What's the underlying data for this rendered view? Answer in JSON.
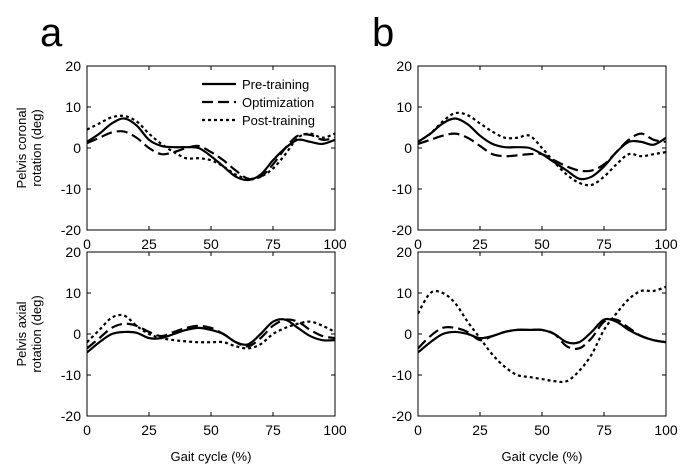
{
  "panel_labels": [
    "a",
    "b"
  ],
  "legend": {
    "pre": "Pre-training",
    "opt": "Optimization",
    "post": "Post-training"
  },
  "chart_data": [
    {
      "id": "a-top",
      "type": "line",
      "panel": "a",
      "ylabel": [
        "Pelvis coronal",
        "rotation (deg)"
      ],
      "xlabel": "",
      "xlim": [
        0,
        100
      ],
      "ylim": [
        -20,
        20
      ],
      "xticks": [
        0,
        25,
        50,
        75,
        100
      ],
      "yticks": [
        -20,
        -10,
        0,
        10,
        20
      ],
      "grid": false,
      "legend_position": "top-right",
      "series": [
        {
          "key": "pre",
          "name": "Pre-training",
          "style": "solid",
          "x": [
            0,
            5,
            10,
            15,
            20,
            25,
            30,
            35,
            40,
            45,
            50,
            55,
            60,
            65,
            70,
            75,
            80,
            85,
            90,
            95,
            100
          ],
          "y": [
            1.5,
            3.5,
            6,
            7.2,
            5.5,
            2,
            0.5,
            0.2,
            0.2,
            0,
            -2,
            -4.5,
            -7,
            -7.8,
            -6.5,
            -3,
            0,
            2,
            1.5,
            1,
            2
          ]
        },
        {
          "key": "opt",
          "name": "Optimization",
          "style": "dashed",
          "x": [
            0,
            5,
            10,
            15,
            20,
            25,
            30,
            35,
            40,
            45,
            50,
            55,
            60,
            65,
            70,
            75,
            80,
            85,
            90,
            95,
            100
          ],
          "y": [
            1.2,
            2.5,
            3.8,
            4,
            2.5,
            0,
            -1.5,
            -1,
            0,
            0.5,
            -1,
            -3,
            -5.5,
            -7.5,
            -7,
            -4,
            0,
            3,
            3.2,
            2,
            2.5
          ]
        },
        {
          "key": "post",
          "name": "Post-training",
          "style": "dotted",
          "x": [
            0,
            5,
            10,
            15,
            20,
            25,
            30,
            35,
            40,
            45,
            50,
            55,
            60,
            65,
            70,
            75,
            80,
            85,
            90,
            95,
            100
          ],
          "y": [
            4.5,
            6,
            7.5,
            7.8,
            6.5,
            3.5,
            1,
            -1,
            -2.5,
            -2.5,
            -3,
            -4.5,
            -6.5,
            -7.5,
            -7,
            -5,
            -1.5,
            2.5,
            3.5,
            2.5,
            3.5
          ]
        }
      ]
    },
    {
      "id": "b-top",
      "type": "line",
      "panel": "b",
      "ylabel": [],
      "xlabel": "",
      "xlim": [
        0,
        100
      ],
      "ylim": [
        -20,
        20
      ],
      "xticks": [
        0,
        25,
        50,
        75,
        100
      ],
      "yticks": [
        -20,
        -10,
        0,
        10,
        20
      ],
      "grid": false,
      "series": [
        {
          "key": "pre",
          "name": "Pre-training",
          "style": "solid",
          "x": [
            0,
            5,
            10,
            15,
            20,
            25,
            30,
            35,
            40,
            45,
            50,
            55,
            60,
            65,
            70,
            75,
            80,
            85,
            90,
            95,
            100
          ],
          "y": [
            1.5,
            3.5,
            6,
            7.2,
            5.8,
            3,
            1,
            0.2,
            0.2,
            0,
            -1.5,
            -3.5,
            -5.5,
            -7.5,
            -7,
            -4.5,
            -1,
            1.5,
            1.5,
            0.8,
            2.5
          ]
        },
        {
          "key": "opt",
          "name": "Optimization",
          "style": "dashed",
          "x": [
            0,
            5,
            10,
            15,
            20,
            25,
            30,
            35,
            40,
            45,
            50,
            55,
            60,
            65,
            70,
            75,
            80,
            85,
            90,
            95,
            100
          ],
          "y": [
            1,
            2,
            3,
            3.5,
            2.5,
            0.5,
            -1.5,
            -2,
            -1.8,
            -1.5,
            -1.5,
            -3,
            -4.5,
            -5.5,
            -5.5,
            -4,
            -1,
            2,
            3.5,
            2,
            1.5
          ]
        },
        {
          "key": "post",
          "name": "Post-training",
          "style": "dotted",
          "x": [
            0,
            5,
            10,
            15,
            20,
            25,
            30,
            35,
            40,
            45,
            50,
            55,
            60,
            65,
            70,
            75,
            80,
            85,
            90,
            95,
            100
          ],
          "y": [
            1.5,
            3.5,
            6.5,
            8.5,
            8,
            6,
            4,
            2.5,
            2.5,
            3,
            0,
            -3.5,
            -6.5,
            -8.5,
            -9,
            -7,
            -4,
            -1.5,
            -2,
            -1.5,
            -1
          ]
        }
      ]
    },
    {
      "id": "a-bottom",
      "type": "line",
      "panel": "a",
      "ylabel": [
        "Pelvis axial",
        "rotation (deg)"
      ],
      "xlabel": "Gait cycle (%)",
      "xlim": [
        0,
        100
      ],
      "ylim": [
        -20,
        20
      ],
      "xticks": [
        0,
        25,
        50,
        75,
        100
      ],
      "yticks": [
        -20,
        -10,
        0,
        10,
        20
      ],
      "grid": false,
      "series": [
        {
          "key": "pre",
          "name": "Pre-training",
          "style": "solid",
          "x": [
            0,
            5,
            10,
            15,
            20,
            25,
            30,
            35,
            40,
            45,
            50,
            55,
            60,
            65,
            70,
            75,
            80,
            85,
            90,
            95,
            100
          ],
          "y": [
            -4.5,
            -2,
            0,
            0.5,
            0.3,
            -1,
            -1,
            0,
            1,
            1.5,
            1,
            0,
            -2,
            -2.5,
            0,
            3,
            3.5,
            1.5,
            -0.5,
            -1.5,
            -1.5
          ]
        },
        {
          "key": "opt",
          "name": "Optimization",
          "style": "dashed",
          "x": [
            0,
            5,
            10,
            15,
            20,
            25,
            30,
            35,
            40,
            45,
            50,
            55,
            60,
            65,
            70,
            75,
            80,
            85,
            90,
            95,
            100
          ],
          "y": [
            -3.5,
            -1,
            1.5,
            2.5,
            2,
            0.5,
            -0.5,
            0.5,
            1.5,
            2,
            1.5,
            0,
            -2,
            -3,
            -1,
            2,
            3.5,
            3,
            1,
            -0.5,
            -1
          ]
        },
        {
          "key": "post",
          "name": "Post-training",
          "style": "dotted",
          "x": [
            0,
            5,
            10,
            15,
            20,
            25,
            30,
            35,
            40,
            45,
            50,
            55,
            60,
            65,
            70,
            75,
            80,
            85,
            90,
            95,
            100
          ],
          "y": [
            -2,
            1,
            4,
            4.5,
            2,
            0,
            -1,
            -1.5,
            -1.8,
            -2,
            -2,
            -2,
            -3,
            -3.5,
            -2.5,
            0,
            1.5,
            2.5,
            3,
            2,
            0.5
          ]
        }
      ]
    },
    {
      "id": "b-bottom",
      "type": "line",
      "panel": "b",
      "ylabel": [],
      "xlabel": "Gait cycle (%)",
      "xlim": [
        0,
        100
      ],
      "ylim": [
        -20,
        20
      ],
      "xticks": [
        0,
        25,
        50,
        75,
        100
      ],
      "yticks": [
        -20,
        -10,
        0,
        10,
        20
      ],
      "grid": false,
      "series": [
        {
          "key": "pre",
          "name": "Pre-training",
          "style": "solid",
          "x": [
            0,
            5,
            10,
            15,
            20,
            25,
            30,
            35,
            40,
            45,
            50,
            55,
            60,
            65,
            70,
            75,
            80,
            85,
            90,
            95,
            100
          ],
          "y": [
            -4.5,
            -2,
            0,
            0.5,
            0,
            -1,
            -0.5,
            0.5,
            1,
            1,
            1,
            0,
            -2,
            -2,
            0.5,
            3.5,
            3,
            1,
            -0.5,
            -1.5,
            -2
          ]
        },
        {
          "key": "opt",
          "name": "Optimization",
          "style": "dashed",
          "x": [
            0,
            5,
            10,
            15,
            20,
            25,
            30,
            35,
            40,
            45,
            50,
            55,
            60,
            65,
            70,
            75,
            80,
            85,
            90,
            95,
            100
          ],
          "y": [
            -3.5,
            -0.5,
            1.5,
            1.5,
            0.5,
            -1.5,
            -0.5,
            0.5,
            1,
            1,
            1,
            0,
            -3,
            -3.5,
            -1,
            3,
            3.5,
            1.5,
            -0.5,
            -1.5,
            -2
          ]
        },
        {
          "key": "post",
          "name": "Post-training",
          "style": "dotted",
          "x": [
            0,
            5,
            10,
            15,
            20,
            25,
            30,
            35,
            40,
            45,
            50,
            55,
            60,
            65,
            70,
            75,
            80,
            85,
            90,
            95,
            100
          ],
          "y": [
            5,
            10,
            10,
            7.5,
            3,
            -1,
            -5,
            -8,
            -10,
            -10.5,
            -11,
            -11.5,
            -11.5,
            -9,
            -5,
            1,
            5,
            8.5,
            10.5,
            10.5,
            11.5
          ]
        }
      ]
    }
  ]
}
